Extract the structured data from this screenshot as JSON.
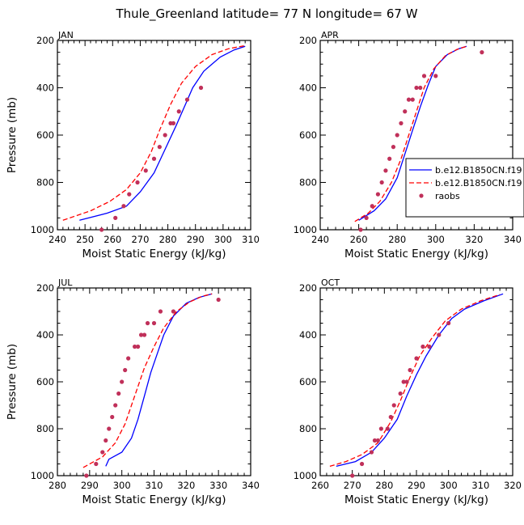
{
  "title": "Thule_Greenland   latitude= 77 N longitude= 67 W",
  "chart_data": [
    {
      "type": "line",
      "label": "JAN",
      "xlabel": "Moist Static Energy (kJ/kg)",
      "ylabel": "Pressure (mb)",
      "xlim": [
        240,
        310
      ],
      "ylim": [
        1000,
        200
      ],
      "xticks": [
        240,
        250,
        260,
        270,
        280,
        290,
        300,
        310
      ],
      "yticks": [
        200,
        400,
        600,
        800,
        1000
      ],
      "series": [
        {
          "name": "b.e12.B1850CN.f19",
          "style": "solid",
          "color": "#0000ff",
          "x": [
            248,
            258,
            265,
            270,
            275,
            279,
            283,
            286,
            289,
            293,
            299,
            304,
            308
          ],
          "y": [
            960,
            930,
            900,
            840,
            760,
            660,
            560,
            480,
            400,
            330,
            270,
            240,
            225
          ]
        },
        {
          "name": "b.e12.B1850CN.f19",
          "style": "dashed",
          "color": "#ff0000",
          "x": [
            242,
            252,
            259,
            265,
            270,
            274,
            277,
            281,
            285,
            290,
            296,
            302,
            308
          ],
          "y": [
            960,
            920,
            880,
            830,
            760,
            670,
            580,
            470,
            380,
            310,
            260,
            235,
            222
          ]
        },
        {
          "name": "raobs",
          "style": "markers",
          "color": "#c0305a",
          "x": [
            256,
            261,
            264,
            266,
            269,
            272,
            275,
            277,
            279,
            281,
            282,
            284,
            287,
            292
          ],
          "y": [
            1000,
            950,
            900,
            850,
            800,
            750,
            700,
            650,
            600,
            550,
            550,
            500,
            450,
            400
          ]
        }
      ]
    },
    {
      "type": "line",
      "label": "APR",
      "xlabel": "Moist Static Energy (kJ/kg)",
      "ylabel": "",
      "xlim": [
        240,
        340
      ],
      "ylim": [
        1000,
        200
      ],
      "xticks": [
        240,
        260,
        280,
        300,
        320,
        340
      ],
      "yticks": [
        200,
        400,
        600,
        800,
        1000
      ],
      "legend": {
        "position": "right",
        "entries": [
          "b.e12.B1850CN.f19",
          "b.e12.B1850CN.f19",
          "raobs"
        ]
      },
      "series": [
        {
          "name": "b.e12.B1850CN.f19",
          "style": "solid",
          "color": "#0000ff",
          "x": [
            260,
            268,
            274,
            280,
            284,
            288,
            292,
            296,
            300,
            306,
            312,
            316
          ],
          "y": [
            960,
            920,
            870,
            780,
            680,
            580,
            480,
            390,
            310,
            260,
            235,
            225
          ]
        },
        {
          "name": "b.e12.B1850CN.f19",
          "style": "dashed",
          "color": "#ff0000",
          "x": [
            258,
            265,
            271,
            277,
            282,
            286,
            290,
            294,
            299,
            305,
            311,
            316
          ],
          "y": [
            965,
            930,
            880,
            800,
            700,
            600,
            500,
            400,
            320,
            265,
            238,
            225
          ]
        },
        {
          "name": "raobs",
          "style": "markers",
          "color": "#c0305a",
          "x": [
            261,
            264,
            267,
            270,
            272,
            274,
            276,
            278,
            280,
            282,
            284,
            286,
            288,
            290,
            292,
            294,
            300,
            324
          ],
          "y": [
            1000,
            950,
            900,
            850,
            800,
            750,
            700,
            650,
            600,
            550,
            500,
            450,
            450,
            400,
            400,
            350,
            350,
            250
          ]
        }
      ]
    },
    {
      "type": "line",
      "label": "JUL",
      "xlabel": "Moist Static Energy (kJ/kg)",
      "ylabel": "Pressure (mb)",
      "xlim": [
        280,
        340
      ],
      "ylim": [
        1000,
        200
      ],
      "xticks": [
        280,
        290,
        300,
        310,
        320,
        330,
        340
      ],
      "yticks": [
        200,
        400,
        600,
        800,
        1000
      ],
      "series": [
        {
          "name": "b.e12.B1850CN.f19",
          "style": "solid",
          "color": "#0000ff",
          "x": [
            295,
            296,
            300,
            303,
            305,
            307,
            309,
            311,
            313,
            316,
            320,
            324,
            328
          ],
          "y": [
            960,
            930,
            900,
            840,
            760,
            660,
            560,
            480,
            400,
            320,
            265,
            240,
            225
          ]
        },
        {
          "name": "b.e12.B1850CN.f19",
          "style": "dashed",
          "color": "#ff0000",
          "x": [
            288,
            294,
            298,
            301,
            303,
            305,
            307,
            310,
            313,
            317,
            321,
            325,
            328
          ],
          "y": [
            965,
            920,
            860,
            780,
            700,
            620,
            540,
            450,
            370,
            300,
            260,
            235,
            225
          ]
        },
        {
          "name": "raobs",
          "style": "markers",
          "color": "#c0305a",
          "x": [
            289,
            292,
            294,
            295,
            296,
            297,
            298,
            299,
            300,
            301,
            302,
            304,
            305,
            306,
            307,
            308,
            310,
            312,
            316,
            330
          ],
          "y": [
            1000,
            950,
            900,
            850,
            800,
            750,
            700,
            650,
            600,
            550,
            500,
            450,
            450,
            400,
            400,
            350,
            350,
            300,
            300,
            250
          ]
        }
      ]
    },
    {
      "type": "line",
      "label": "OCT",
      "xlabel": "Moist Static Energy (kJ/kg)",
      "ylabel": "",
      "xlim": [
        260,
        320
      ],
      "ylim": [
        1000,
        200
      ],
      "xticks": [
        260,
        270,
        280,
        290,
        300,
        310,
        320
      ],
      "yticks": [
        200,
        400,
        600,
        800,
        1000
      ],
      "series": [
        {
          "name": "b.e12.B1850CN.f19",
          "style": "solid",
          "color": "#0000ff",
          "x": [
            265,
            271,
            276,
            280,
            284,
            287,
            290,
            293,
            297,
            301,
            305,
            311,
            317
          ],
          "y": [
            960,
            940,
            900,
            840,
            760,
            660,
            570,
            490,
            400,
            330,
            290,
            255,
            225
          ]
        },
        {
          "name": "b.e12.B1850CN.f19",
          "style": "dashed",
          "color": "#ff0000",
          "x": [
            263,
            268,
            273,
            278,
            282,
            285,
            288,
            291,
            295,
            299,
            304,
            310,
            316
          ],
          "y": [
            960,
            940,
            910,
            860,
            770,
            680,
            580,
            490,
            410,
            340,
            290,
            255,
            228
          ]
        },
        {
          "name": "raobs",
          "style": "markers",
          "color": "#c0305a",
          "x": [
            270,
            273,
            276,
            277,
            278,
            279,
            281,
            282,
            283,
            285,
            286,
            287,
            288,
            290,
            292,
            294,
            297,
            300
          ],
          "y": [
            1000,
            950,
            900,
            850,
            850,
            800,
            800,
            750,
            700,
            650,
            600,
            600,
            550,
            500,
            450,
            450,
            400,
            350
          ]
        }
      ]
    }
  ]
}
